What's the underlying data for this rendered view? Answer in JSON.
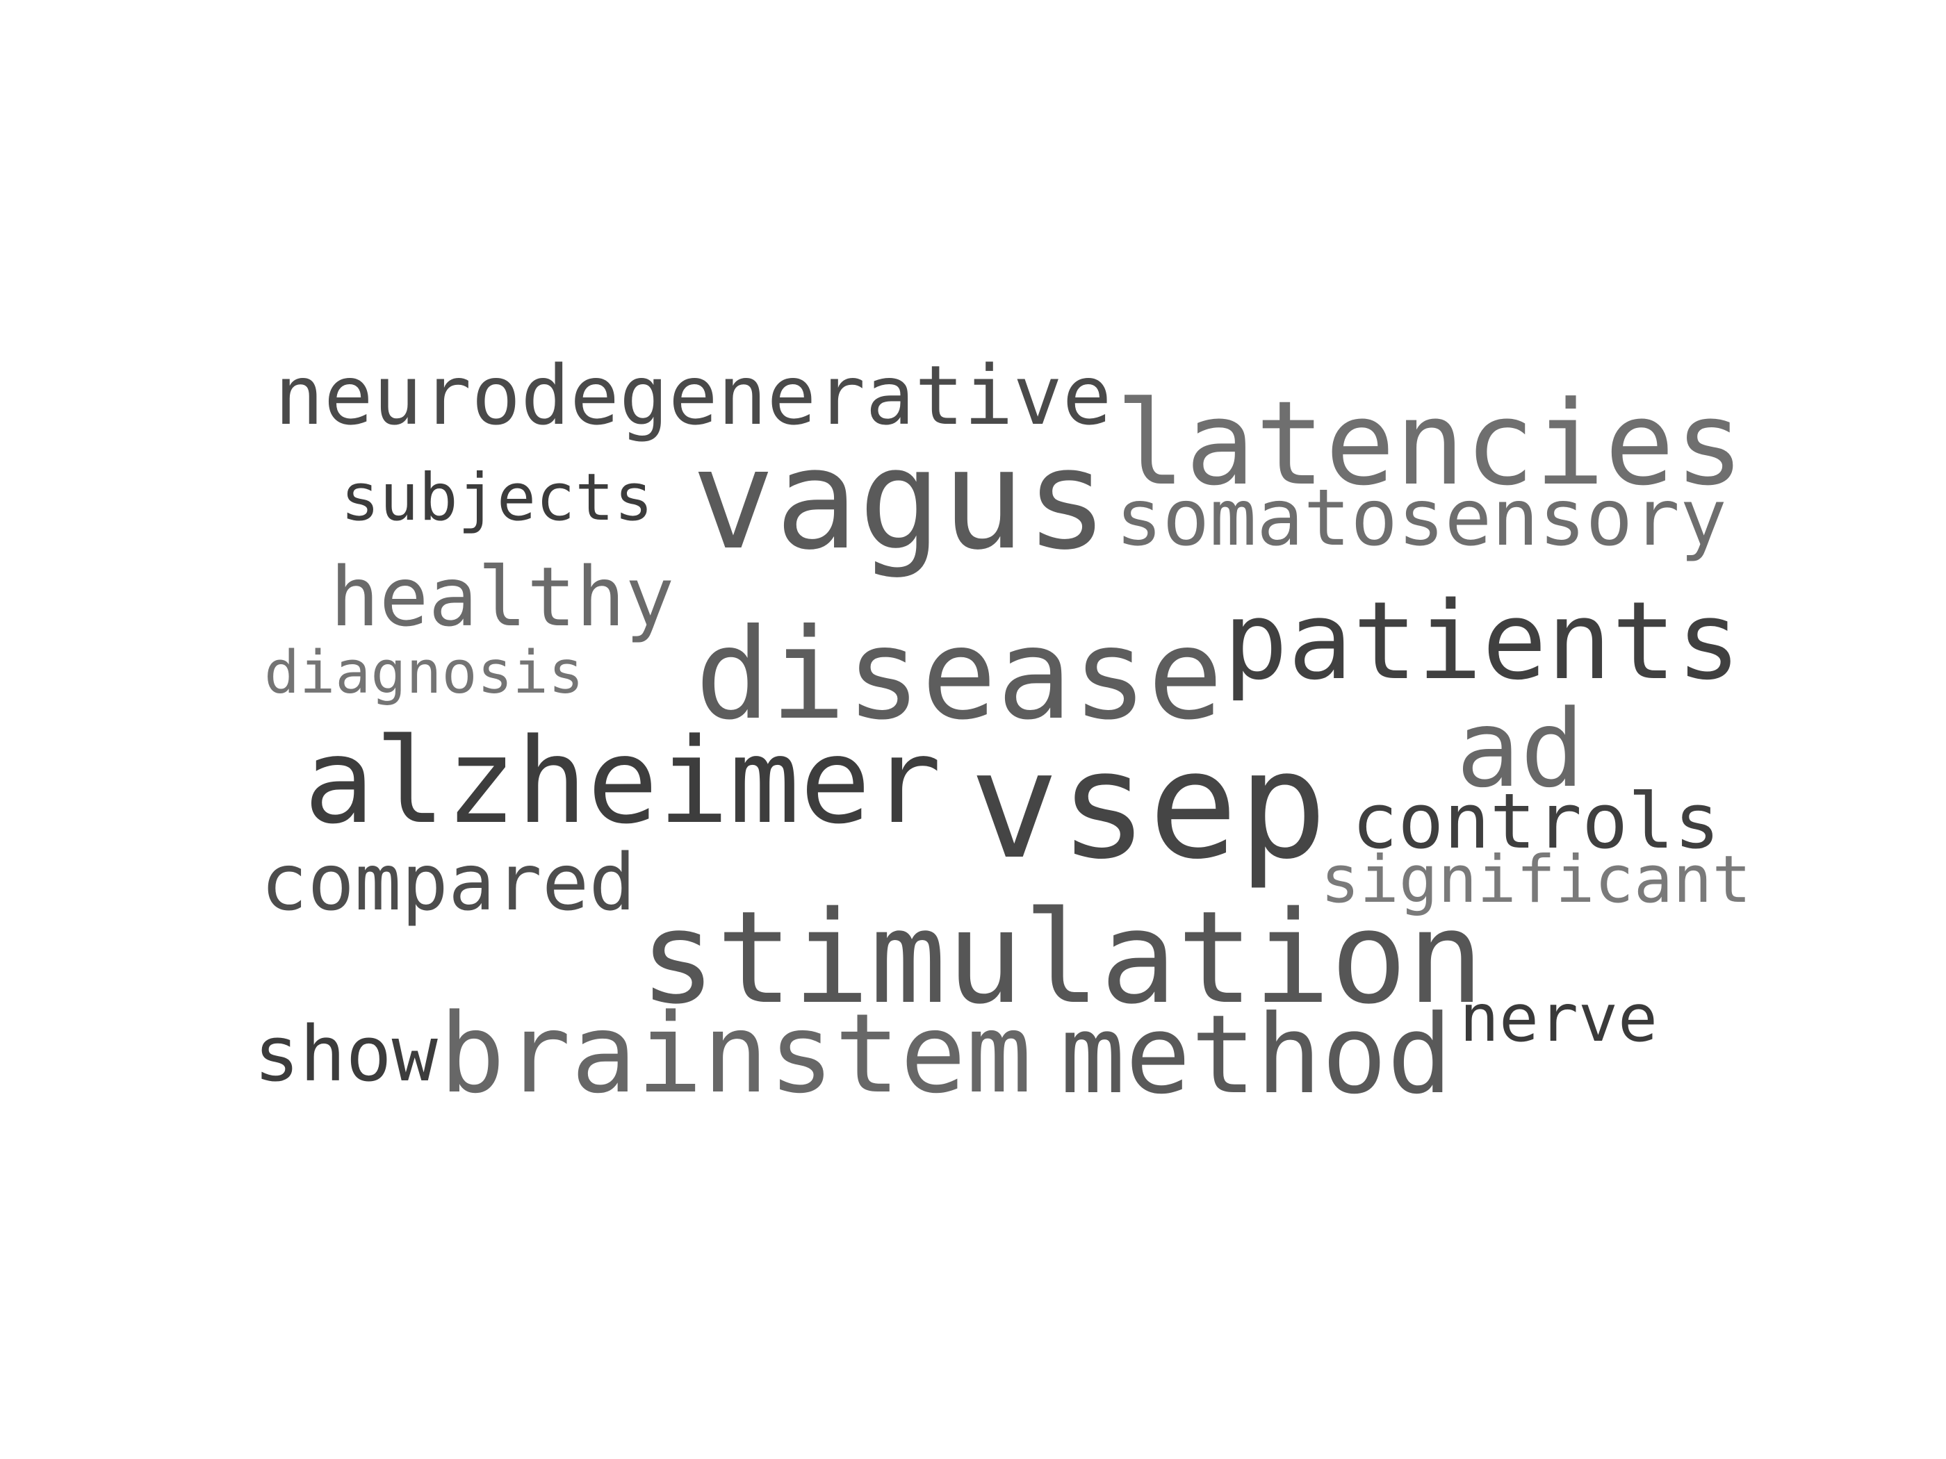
{
  "word_cloud": {
    "words": [
      {
        "text": "vagus",
        "color": "#5a5a5a"
      },
      {
        "text": "vsep",
        "color": "#454545"
      },
      {
        "text": "latencies",
        "color": "#6f6f6f"
      },
      {
        "text": "disease",
        "color": "#5d5d5d"
      },
      {
        "text": "alzheimer",
        "color": "#3d3d3d"
      },
      {
        "text": "stimulation",
        "color": "#565656"
      },
      {
        "text": "patients",
        "color": "#404040"
      },
      {
        "text": "brainstem",
        "color": "#676767"
      },
      {
        "text": "method",
        "color": "#595959"
      },
      {
        "text": "neurodegenerative",
        "color": "#4a4a4a"
      },
      {
        "text": "somatosensory",
        "color": "#6e6e6e"
      },
      {
        "text": "ad",
        "color": "#686868"
      },
      {
        "text": "healthy",
        "color": "#6a6a6a"
      },
      {
        "text": "controls",
        "color": "#3f3f3f"
      },
      {
        "text": "compared",
        "color": "#4d4d4d"
      },
      {
        "text": "subjects",
        "color": "#3c3c3c"
      },
      {
        "text": "show",
        "color": "#3c3c3c"
      },
      {
        "text": "diagnosis",
        "color": "#747474"
      },
      {
        "text": "significant",
        "color": "#7a7a7a"
      },
      {
        "text": "nerve",
        "color": "#3a3a3a"
      }
    ]
  }
}
